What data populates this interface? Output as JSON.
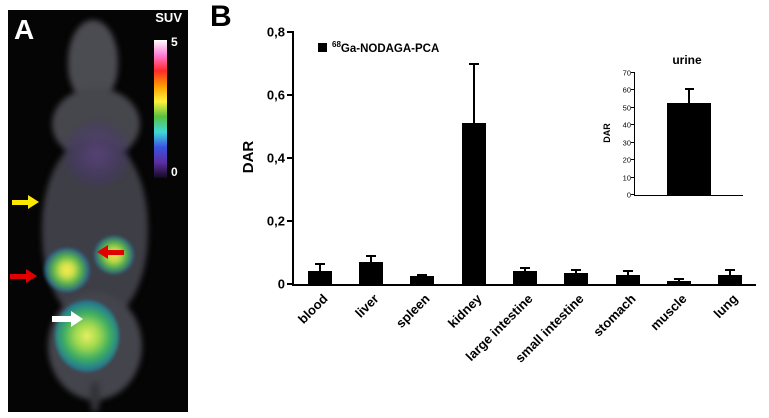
{
  "figure": {
    "background": "#ffffff"
  },
  "panel_a": {
    "label": "A",
    "colorbar": {
      "title": "SUV",
      "max_label": "5",
      "min_label": "0",
      "colors": [
        "#ffffff",
        "#ff7bd5",
        "#ff2a2a",
        "#ff9b00",
        "#fff23c",
        "#59c13f",
        "#3fd9d9",
        "#3b52e0",
        "#5a2e9e",
        "#14081f"
      ]
    },
    "arrows": [
      {
        "name": "yellow-arrow",
        "color": "#ffe800",
        "direction": "right"
      },
      {
        "name": "red-arrow-left",
        "color": "#e00000",
        "direction": "right"
      },
      {
        "name": "red-arrow-right",
        "color": "#e00000",
        "direction": "left"
      },
      {
        "name": "white-arrow",
        "color": "#ffffff",
        "direction": "right"
      }
    ]
  },
  "panel_b": {
    "label": "B"
  },
  "chart_data": [
    {
      "type": "bar",
      "title": "",
      "legend_isotope": "68",
      "legend_label": "Ga-NODAGA-PCA",
      "legend_color": "#000000",
      "ylabel": "DAR",
      "xlabel": "",
      "ylim": [
        0,
        0.8
      ],
      "ytick_step": 0.2,
      "ytick_labels": [
        "0",
        "0,2",
        "0,4",
        "0,6",
        "0,8"
      ],
      "categories": [
        "blood",
        "liver",
        "spleen",
        "kidney",
        "large intestine",
        "small intestine",
        "stomach",
        "muscle",
        "lung"
      ],
      "values": [
        0.04,
        0.07,
        0.025,
        0.51,
        0.04,
        0.035,
        0.03,
        0.01,
        0.03
      ],
      "errors": [
        0.025,
        0.02,
        0.005,
        0.19,
        0.01,
        0.01,
        0.01,
        0.005,
        0.015
      ],
      "bar_color": "#000000",
      "grid": false,
      "legend_position": "top-left"
    },
    {
      "type": "bar",
      "title": "urine",
      "ylabel": "DAR",
      "xlabel": "",
      "ylim": [
        0,
        70
      ],
      "ytick_step": 10,
      "ytick_labels": [
        "0",
        "10",
        "20",
        "30",
        "40",
        "50",
        "60",
        "70"
      ],
      "categories": [
        "urine"
      ],
      "values": [
        53
      ],
      "errors": [
        8
      ],
      "bar_color": "#000000",
      "grid": false
    }
  ]
}
